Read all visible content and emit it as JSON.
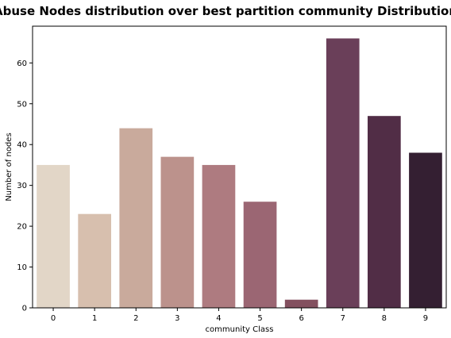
{
  "chart_data": {
    "type": "bar",
    "title": "Abuse Nodes distribution over best partition community Distribution",
    "xlabel": "community Class",
    "ylabel": "Number of nodes",
    "categories": [
      "0",
      "1",
      "2",
      "3",
      "4",
      "5",
      "6",
      "7",
      "8",
      "9"
    ],
    "values": [
      35,
      23,
      44,
      37,
      35,
      26,
      2,
      66,
      47,
      38
    ],
    "colors": [
      "#e2d6c7",
      "#d7bfae",
      "#c9aa9c",
      "#bc928c",
      "#ae7b80",
      "#9b6673",
      "#83505f",
      "#6a3f59",
      "#512d46",
      "#341f32"
    ],
    "ylim": [
      0,
      69
    ],
    "yticks": [
      0,
      10,
      20,
      30,
      40,
      50,
      60
    ],
    "grid": false,
    "legend": false
  }
}
